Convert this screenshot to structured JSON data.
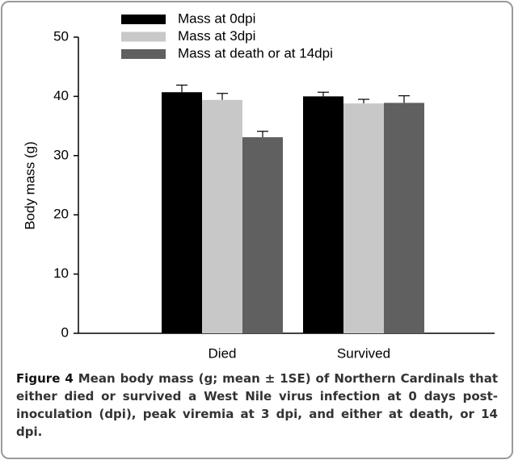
{
  "chart_data": {
    "type": "bar",
    "ylabel": "Body mass (g)",
    "categories": [
      "Died",
      "Survived"
    ],
    "series": [
      {
        "name": "Mass at 0dpi",
        "color": "#000000",
        "values": [
          40.7,
          40.0
        ],
        "errors": [
          1.2,
          0.7
        ]
      },
      {
        "name": "Mass at 3dpi",
        "color": "#c8c8c8",
        "values": [
          39.4,
          38.8
        ],
        "errors": [
          1.1,
          0.7
        ]
      },
      {
        "name": "Mass at death or at 14dpi",
        "color": "#606060",
        "values": [
          33.1,
          38.9
        ],
        "errors": [
          1.0,
          1.2
        ]
      }
    ],
    "ylim": [
      0,
      50
    ],
    "yticks": [
      0,
      10,
      20,
      30,
      40,
      50
    ],
    "grid": false
  },
  "caption": {
    "label": "Figure 4",
    "text": "Mean body mass (g; mean ± 1SE) of Northern Cardinals that either died or survived a West Nile virus infection at 0 days post-inoculation (dpi), peak viremia at 3 dpi, and either at death, or 14 dpi."
  }
}
